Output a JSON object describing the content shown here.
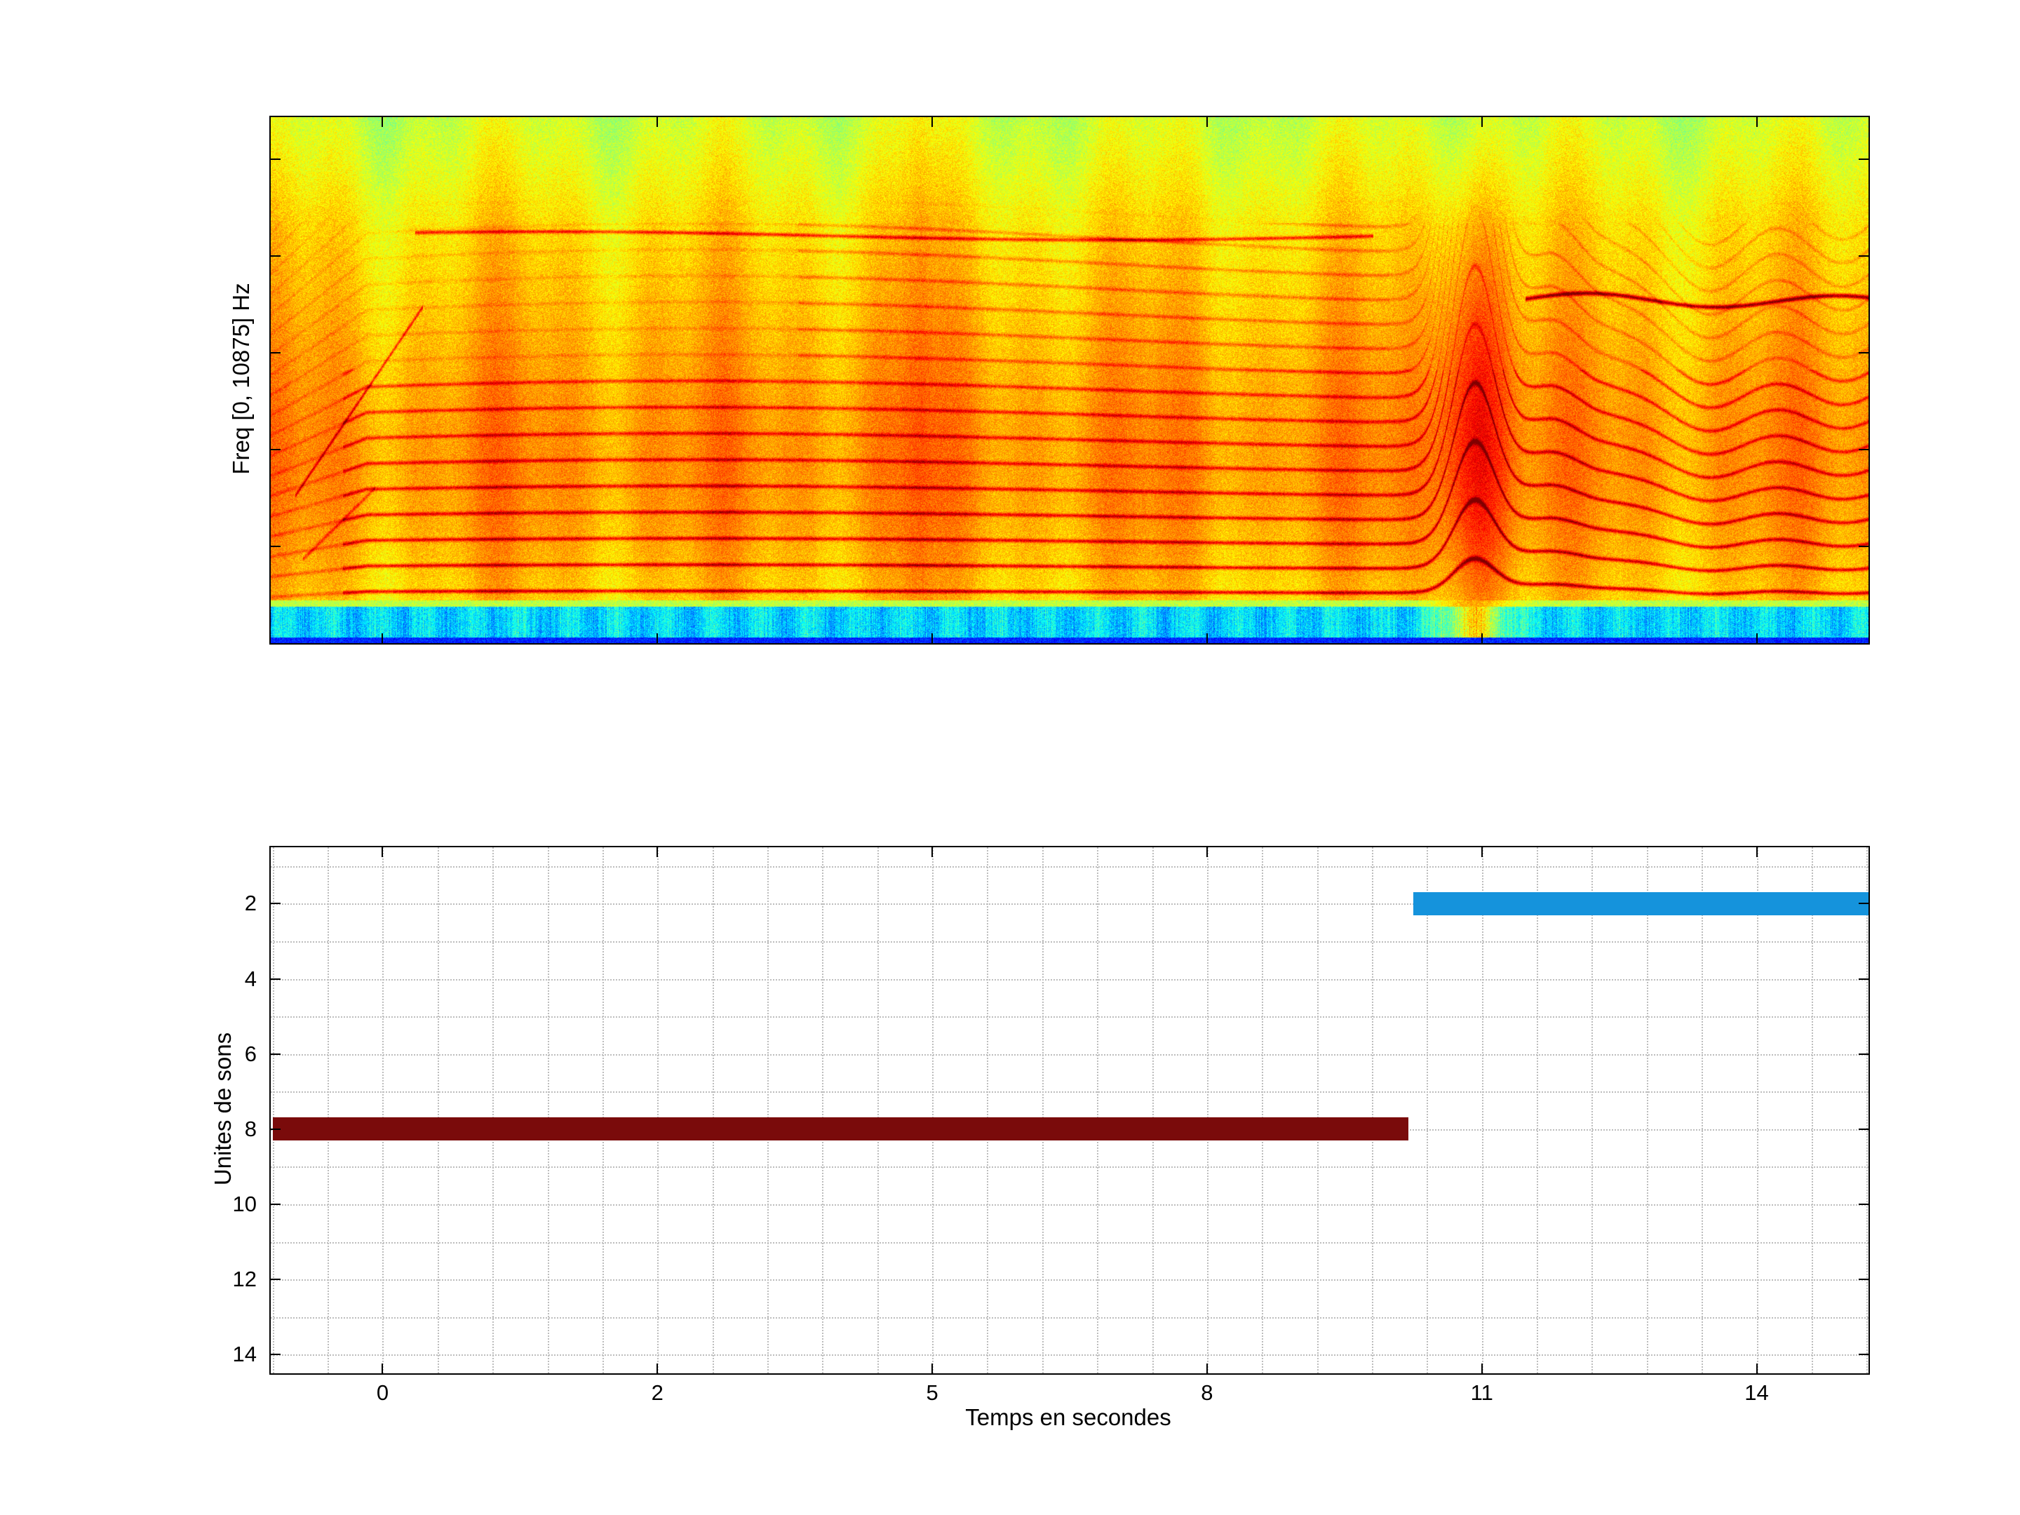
{
  "figure": {
    "background_color": "#ffffff",
    "axis_color": "#000000",
    "grid_color": "#bdbdbd"
  },
  "chart_data": [
    {
      "type": "heatmap",
      "subtype": "spectrogram",
      "title": "",
      "ylabel": "Freq [0, 10875] Hz",
      "freq_range_hz": [
        0,
        10875
      ],
      "time_range_s": [
        -0.8,
        15.3
      ],
      "colormap": "jet",
      "features": [
        "broadband yellow-orange noise floor across full duration",
        "stacks of dark-red harmonic lines in the low and mid frequencies from 0 s to about 10 s",
        "denser harmonic stack between about 4 s and 10 s reaching higher frequencies",
        "strong voiced event near 10.9 s where harmonics rise then fall in frequency (dark red curves)",
        "wavy harmonic stack from about 11.5 s to 15.3 s",
        "thin dark formant line near 7 kHz from about 11.5 s to the end",
        "cyan low-energy band along the bottom edge with a dark blue base line"
      ]
    },
    {
      "type": "bar",
      "orientation": "horizontal-gantt",
      "title": "",
      "xlabel": "Temps en secondes",
      "ylabel": "Unites de sons",
      "x_ticks": [
        0,
        2,
        5,
        8,
        11,
        14
      ],
      "y_ticks": [
        2,
        4,
        6,
        8,
        10,
        12,
        14
      ],
      "xlim": [
        -0.8,
        15.3
      ],
      "ylim": [
        0.5,
        14.5
      ],
      "grid": "minor-dotted",
      "bar_thickness_units": 0.62,
      "series": [
        {
          "name": "unit-8-segment",
          "unit": 8,
          "start_s": -0.8,
          "end_s": 10.2,
          "color": "#7a0b0b"
        },
        {
          "name": "unit-2-segment",
          "unit": 2,
          "start_s": 10.25,
          "end_s": 15.3,
          "color": "#1593dc"
        }
      ]
    }
  ]
}
